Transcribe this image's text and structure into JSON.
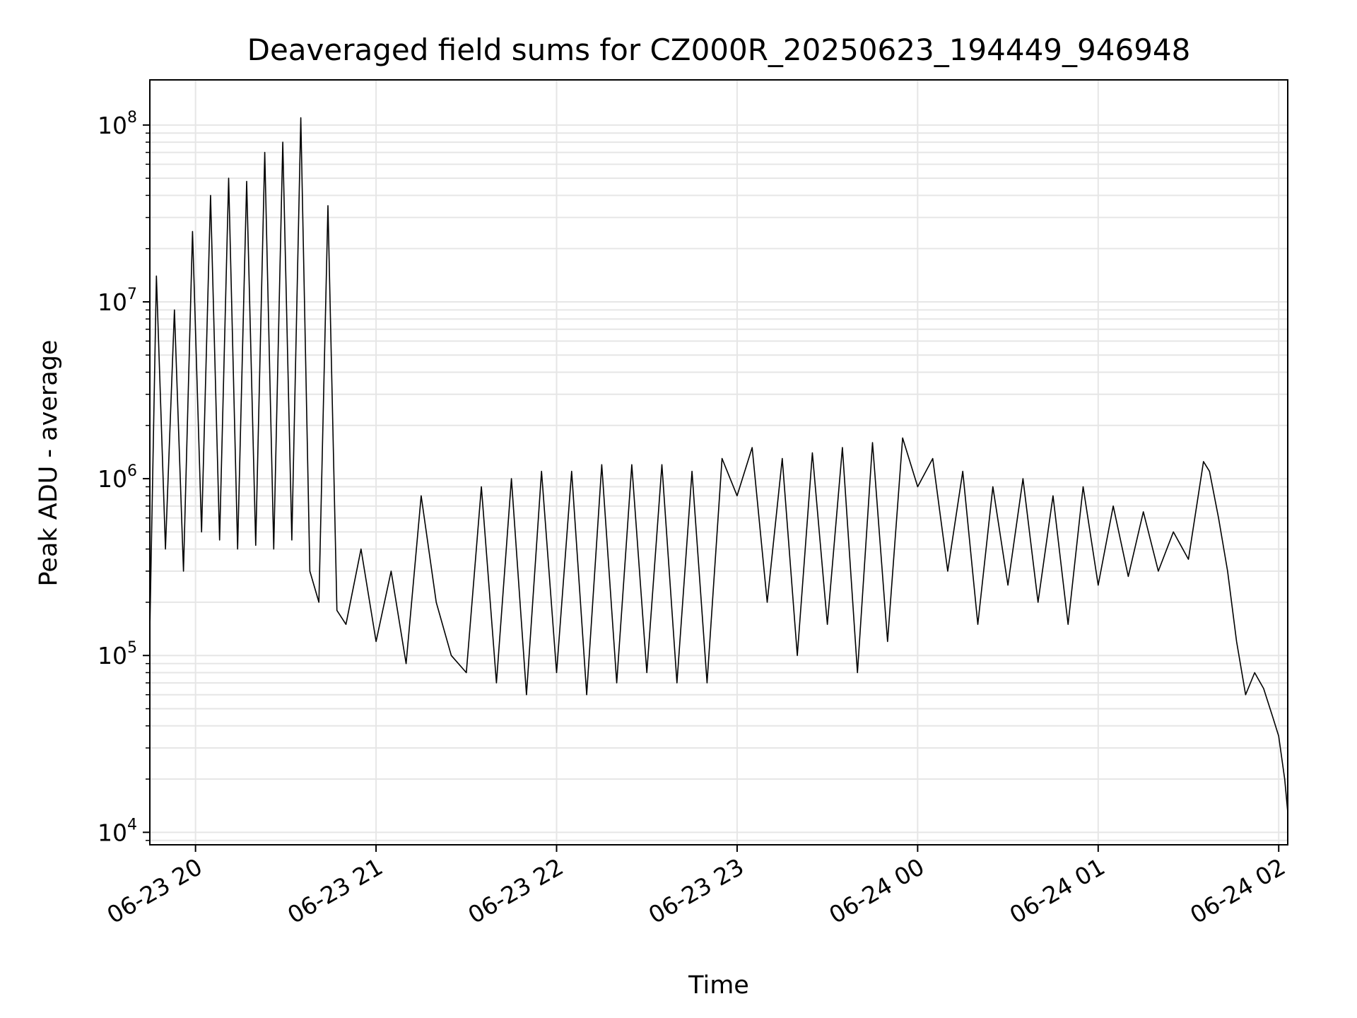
{
  "chart_data": {
    "type": "line",
    "title": "Deaveraged field sums for CZ000R_20250623_194449_946948",
    "xlabel": "Time",
    "ylabel": "Peak ADU - average",
    "yscale": "log",
    "ylim": [
      8500,
      180000000
    ],
    "xlim": [
      "2025-06-23 19:44:49",
      "2025-06-24 02:03:00"
    ],
    "grid": true,
    "line_color": "#000000",
    "grid_color": "#e6e6e6",
    "x_ticks": [
      {
        "t": "2025-06-23 20:00:00",
        "label": "06-23 20"
      },
      {
        "t": "2025-06-23 21:00:00",
        "label": "06-23 21"
      },
      {
        "t": "2025-06-23 22:00:00",
        "label": "06-23 22"
      },
      {
        "t": "2025-06-23 23:00:00",
        "label": "06-23 23"
      },
      {
        "t": "2025-06-24 00:00:00",
        "label": "06-24 00"
      },
      {
        "t": "2025-06-24 01:00:00",
        "label": "06-24 01"
      },
      {
        "t": "2025-06-24 02:00:00",
        "label": "06-24 02"
      }
    ],
    "y_ticks": [
      {
        "value": 10000,
        "base": "10",
        "exp": "4"
      },
      {
        "value": 100000,
        "base": "10",
        "exp": "5"
      },
      {
        "value": 1000000,
        "base": "10",
        "exp": "6"
      },
      {
        "value": 10000000,
        "base": "10",
        "exp": "7"
      },
      {
        "value": 100000000,
        "base": "10",
        "exp": "8"
      }
    ],
    "series": [
      {
        "x": [
          "2025-06-23 19:44:49",
          "2025-06-23 19:47:00",
          "2025-06-23 19:50:00",
          "2025-06-23 19:53:00",
          "2025-06-23 19:56:00",
          "2025-06-23 19:59:00",
          "2025-06-23 20:02:00",
          "2025-06-23 20:05:00",
          "2025-06-23 20:08:00",
          "2025-06-23 20:11:00",
          "2025-06-23 20:14:00",
          "2025-06-23 20:17:00",
          "2025-06-23 20:20:00",
          "2025-06-23 20:23:00",
          "2025-06-23 20:26:00",
          "2025-06-23 20:29:00",
          "2025-06-23 20:32:00",
          "2025-06-23 20:35:00",
          "2025-06-23 20:38:00",
          "2025-06-23 20:41:00",
          "2025-06-23 20:44:00",
          "2025-06-23 20:47:00",
          "2025-06-23 20:50:00",
          "2025-06-23 20:55:00",
          "2025-06-23 21:00:00",
          "2025-06-23 21:05:00",
          "2025-06-23 21:10:00",
          "2025-06-23 21:15:00",
          "2025-06-23 21:20:00",
          "2025-06-23 21:25:00",
          "2025-06-23 21:30:00",
          "2025-06-23 21:35:00",
          "2025-06-23 21:40:00",
          "2025-06-23 21:45:00",
          "2025-06-23 21:50:00",
          "2025-06-23 21:55:00",
          "2025-06-23 22:00:00",
          "2025-06-23 22:05:00",
          "2025-06-23 22:10:00",
          "2025-06-23 22:15:00",
          "2025-06-23 22:20:00",
          "2025-06-23 22:25:00",
          "2025-06-23 22:30:00",
          "2025-06-23 22:35:00",
          "2025-06-23 22:40:00",
          "2025-06-23 22:45:00",
          "2025-06-23 22:50:00",
          "2025-06-23 22:55:00",
          "2025-06-23 23:00:00",
          "2025-06-23 23:05:00",
          "2025-06-23 23:10:00",
          "2025-06-23 23:15:00",
          "2025-06-23 23:20:00",
          "2025-06-23 23:25:00",
          "2025-06-23 23:30:00",
          "2025-06-23 23:35:00",
          "2025-06-23 23:40:00",
          "2025-06-23 23:45:00",
          "2025-06-23 23:50:00",
          "2025-06-23 23:55:00",
          "2025-06-24 00:00:00",
          "2025-06-24 00:05:00",
          "2025-06-24 00:10:00",
          "2025-06-24 00:15:00",
          "2025-06-24 00:20:00",
          "2025-06-24 00:25:00",
          "2025-06-24 00:30:00",
          "2025-06-24 00:35:00",
          "2025-06-24 00:40:00",
          "2025-06-24 00:45:00",
          "2025-06-24 00:50:00",
          "2025-06-24 00:55:00",
          "2025-06-24 01:00:00",
          "2025-06-24 01:05:00",
          "2025-06-24 01:10:00",
          "2025-06-24 01:15:00",
          "2025-06-24 01:20:00",
          "2025-06-24 01:25:00",
          "2025-06-24 01:30:00",
          "2025-06-24 01:35:00",
          "2025-06-24 01:37:00",
          "2025-06-24 01:40:00",
          "2025-06-24 01:43:00",
          "2025-06-24 01:46:00",
          "2025-06-24 01:49:00",
          "2025-06-24 01:52:00",
          "2025-06-24 01:55:00",
          "2025-06-24 01:58:00",
          "2025-06-24 02:00:00",
          "2025-06-24 02:02:00",
          "2025-06-24 02:03:00"
        ],
        "y": [
          140000,
          14000000,
          400000,
          9000000,
          300000,
          25000000,
          500000,
          40000000,
          450000,
          50000000,
          400000,
          48000000,
          420000,
          70000000,
          400000,
          80000000,
          450000,
          110000000,
          300000,
          200000,
          35000000,
          180000,
          150000,
          400000,
          120000,
          300000,
          90000,
          800000,
          200000,
          100000,
          80000,
          900000,
          70000,
          1000000,
          60000,
          1100000,
          80000,
          1100000,
          60000,
          1200000,
          70000,
          1200000,
          80000,
          1200000,
          70000,
          1100000,
          70000,
          1300000,
          800000,
          1500000,
          200000,
          1300000,
          100000,
          1400000,
          150000,
          1500000,
          80000,
          1600000,
          120000,
          1700000,
          900000,
          1300000,
          300000,
          1100000,
          150000,
          900000,
          250000,
          1000000,
          200000,
          800000,
          150000,
          900000,
          250000,
          700000,
          280000,
          650000,
          300000,
          500000,
          350000,
          1250000,
          1100000,
          600000,
          300000,
          120000,
          60000,
          80000,
          65000,
          45000,
          35000,
          20000,
          13000
        ]
      }
    ]
  }
}
